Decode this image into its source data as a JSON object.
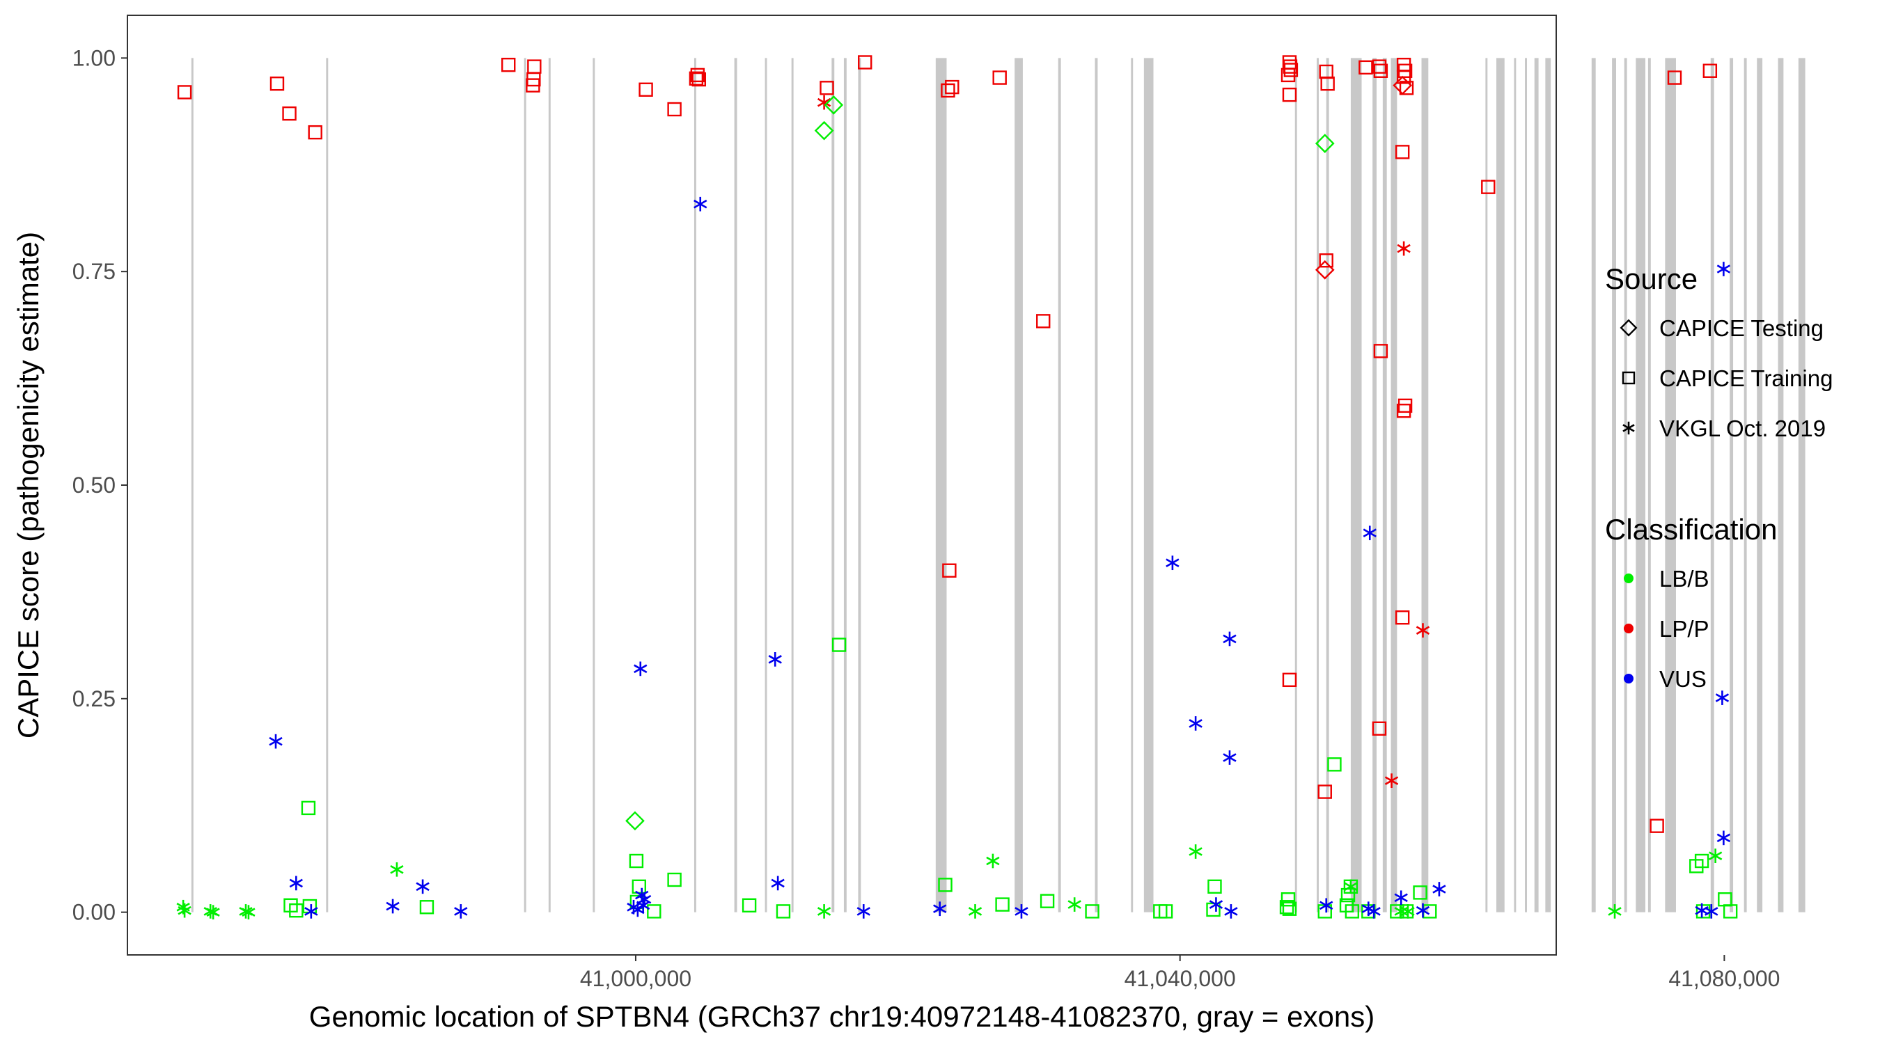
{
  "chart_data": {
    "type": "scatter",
    "xlabel": "Genomic location of SPTBN4 (GRCh37 chr19:40972148-41082370, gray = exons)",
    "ylabel": "CAPICE score (pathogenicity estimate)",
    "xlim": [
      -9500,
      95500
    ],
    "ylim": [
      -0.05,
      1.05
    ],
    "x_ticks": [
      {
        "value": 27852,
        "label": "41,000,000"
      },
      {
        "value": 67852,
        "label": "41,040,000"
      },
      {
        "value": 107852,
        "label": "41,080,000"
      }
    ],
    "y_ticks": [
      {
        "value": 0,
        "label": "0.00"
      },
      {
        "value": 0.25,
        "label": "0.25"
      },
      {
        "value": 0.5,
        "label": "0.50"
      },
      {
        "value": 0.75,
        "label": "0.75"
      },
      {
        "value": 1,
        "label": "1.00"
      }
    ],
    "grid": false,
    "exons": [
      [
        -4800,
        -4650
      ],
      [
        5100,
        5250
      ],
      [
        19650,
        19800
      ],
      [
        21450,
        21600
      ],
      [
        24700,
        24850
      ],
      [
        32150,
        32300
      ],
      [
        35100,
        35300
      ],
      [
        37350,
        37500
      ],
      [
        39300,
        39450
      ],
      [
        42250,
        42450
      ],
      [
        43150,
        43350
      ],
      [
        44200,
        44400
      ],
      [
        49900,
        50700
      ],
      [
        55700,
        56300
      ],
      [
        58900,
        59100
      ],
      [
        61600,
        61800
      ],
      [
        64250,
        64400
      ],
      [
        65200,
        65900
      ],
      [
        76300,
        76450
      ],
      [
        77900,
        78050
      ],
      [
        78600,
        78800
      ],
      [
        80400,
        81200
      ],
      [
        82000,
        82300
      ],
      [
        82750,
        83050
      ],
      [
        83350,
        83800
      ],
      [
        85600,
        86100
      ],
      [
        90300,
        90450
      ],
      [
        91100,
        91700
      ],
      [
        92400,
        92550
      ],
      [
        93200,
        93350
      ],
      [
        93900,
        94200
      ],
      [
        94700,
        95100
      ],
      [
        98100,
        98400
      ],
      [
        99600,
        99900
      ],
      [
        100500,
        100700
      ],
      [
        101350,
        102050
      ],
      [
        102250,
        102450
      ],
      [
        103500,
        104300
      ],
      [
        106850,
        107100
      ],
      [
        108250,
        108500
      ],
      [
        109300,
        109500
      ],
      [
        110250,
        110650
      ],
      [
        111800,
        112200
      ],
      [
        113300,
        113800
      ],
      [
        119350,
        120200
      ]
    ],
    "legend": {
      "placement": "right",
      "source_title": "Source",
      "source_items": [
        {
          "label": "CAPICE Testing",
          "shape": "diamond"
        },
        {
          "label": "CAPICE Training",
          "shape": "square"
        },
        {
          "label": "VKGL Oct. 2019",
          "shape": "asterisk"
        }
      ],
      "class_title": "Classification",
      "class_items": [
        {
          "label": "LB/B",
          "color": "#00ee00"
        },
        {
          "label": "LP/P",
          "color": "#ee0000"
        },
        {
          "label": "VUS",
          "color": "#0000ee"
        }
      ]
    },
    "series": [
      {
        "source": "CAPICE Training",
        "classification": "LP/P",
        "points": [
          [
            -5300,
            0.96
          ],
          [
            1500,
            0.97
          ],
          [
            2400,
            0.935
          ],
          [
            4300,
            0.913
          ],
          [
            18500,
            0.992
          ],
          [
            20400,
            0.99
          ],
          [
            20350,
            0.975
          ],
          [
            20300,
            0.968
          ],
          [
            28600,
            0.963
          ],
          [
            30700,
            0.94
          ],
          [
            32300,
            0.976
          ],
          [
            32400,
            0.98
          ],
          [
            32500,
            0.975
          ],
          [
            41900,
            0.965
          ],
          [
            44700,
            0.995
          ],
          [
            50800,
            0.962
          ],
          [
            51100,
            0.966
          ],
          [
            54600,
            0.977
          ],
          [
            57800,
            0.692
          ],
          [
            50900,
            0.4
          ],
          [
            75900,
            0.995
          ],
          [
            75950,
            0.99
          ],
          [
            76000,
            0.986
          ],
          [
            75800,
            0.98
          ],
          [
            75900,
            0.957
          ],
          [
            78600,
            0.984
          ],
          [
            78700,
            0.97
          ],
          [
            78600,
            0.763
          ],
          [
            78500,
            0.141
          ],
          [
            75900,
            0.272
          ],
          [
            81500,
            0.989
          ],
          [
            82500,
            0.99
          ],
          [
            82600,
            0.985
          ],
          [
            84300,
            0.992
          ],
          [
            84400,
            0.985
          ],
          [
            84300,
            0.978
          ],
          [
            84500,
            0.965
          ],
          [
            84200,
            0.89
          ],
          [
            82600,
            0.657
          ],
          [
            84400,
            0.593
          ],
          [
            84300,
            0.587
          ],
          [
            84200,
            0.345
          ],
          [
            82500,
            0.215
          ],
          [
            90500,
            0.849
          ],
          [
            104200,
            0.977
          ],
          [
            106800,
            0.985
          ],
          [
            102900,
            0.101
          ]
        ]
      },
      {
        "source": "CAPICE Testing",
        "classification": "LP/P",
        "points": [
          [
            84200,
            0.968
          ],
          [
            78500,
            0.752
          ]
        ]
      },
      {
        "source": "VKGL Oct. 2019",
        "classification": "LP/P",
        "points": [
          [
            41700,
            0.948
          ],
          [
            84300,
            0.777
          ],
          [
            85700,
            0.33
          ],
          [
            83400,
            0.154
          ]
        ]
      },
      {
        "source": "CAPICE Testing",
        "classification": "LB/B",
        "points": [
          [
            42400,
            0.945
          ],
          [
            41700,
            0.915
          ],
          [
            78500,
            0.9
          ],
          [
            27800,
            0.107
          ]
        ]
      },
      {
        "source": "CAPICE Training",
        "classification": "LB/B",
        "points": [
          [
            3800,
            0.122
          ],
          [
            2500,
            0.008
          ],
          [
            3900,
            0.007
          ],
          [
            2900,
            0.002
          ],
          [
            12500,
            0.006
          ],
          [
            27900,
            0.06
          ],
          [
            28100,
            0.03
          ],
          [
            27950,
            0.012
          ],
          [
            29200,
            0.001
          ],
          [
            30700,
            0.038
          ],
          [
            36200,
            0.008
          ],
          [
            38700,
            0.001
          ],
          [
            42800,
            0.313
          ],
          [
            50600,
            0.032
          ],
          [
            54800,
            0.009
          ],
          [
            58100,
            0.013
          ],
          [
            61400,
            0.001
          ],
          [
            66400,
            0.001
          ],
          [
            66800,
            0.001
          ],
          [
            70400,
            0.03
          ],
          [
            70300,
            0.003
          ],
          [
            75800,
            0.015
          ],
          [
            75700,
            0.006
          ],
          [
            75900,
            0.004
          ],
          [
            79200,
            0.173
          ],
          [
            80400,
            0.03
          ],
          [
            80200,
            0.02
          ],
          [
            80100,
            0.008
          ],
          [
            80500,
            0.001
          ],
          [
            78500,
            0.001
          ],
          [
            81700,
            0.001
          ],
          [
            83800,
            0.001
          ],
          [
            84500,
            0.001
          ],
          [
            85500,
            0.023
          ],
          [
            86200,
            0.001
          ],
          [
            105800,
            0.054
          ],
          [
            106200,
            0.06
          ],
          [
            107900,
            0.015
          ],
          [
            106300,
            0.001
          ],
          [
            108300,
            0.001
          ]
        ]
      },
      {
        "source": "VKGL Oct. 2019",
        "classification": "LB/B",
        "points": [
          [
            -5400,
            0.006
          ],
          [
            -5300,
            0.002
          ],
          [
            -3400,
            0.001
          ],
          [
            -3200,
            0.0
          ],
          [
            -800,
            0.001
          ],
          [
            -600,
            0.0
          ],
          [
            10300,
            0.05
          ],
          [
            41700,
            0.001
          ],
          [
            52800,
            0.001
          ],
          [
            54100,
            0.06
          ],
          [
            60100,
            0.009
          ],
          [
            69000,
            0.071
          ],
          [
            80400,
            0.03
          ],
          [
            84100,
            0.001
          ],
          [
            84600,
            0.001
          ],
          [
            99800,
            0.001
          ],
          [
            107200,
            0.066
          ]
        ]
      },
      {
        "source": "VKGL Oct. 2019",
        "classification": "VUS",
        "points": [
          [
            1400,
            0.2
          ],
          [
            2900,
            0.034
          ],
          [
            4000,
            0.001
          ],
          [
            10000,
            0.007
          ],
          [
            12200,
            0.03
          ],
          [
            15000,
            0.001
          ],
          [
            27700,
            0.006
          ],
          [
            28200,
            0.285
          ],
          [
            28300,
            0.02
          ],
          [
            28500,
            0.015
          ],
          [
            28400,
            0.008
          ],
          [
            28000,
            0.003
          ],
          [
            32600,
            0.829
          ],
          [
            38100,
            0.296
          ],
          [
            38300,
            0.034
          ],
          [
            44600,
            0.001
          ],
          [
            50200,
            0.004
          ],
          [
            56200,
            0.001
          ],
          [
            67300,
            0.409
          ],
          [
            69000,
            0.221
          ],
          [
            71500,
            0.32
          ],
          [
            71500,
            0.181
          ],
          [
            70500,
            0.009
          ],
          [
            71600,
            0.001
          ],
          [
            78600,
            0.008
          ],
          [
            81800,
            0.444
          ],
          [
            81700,
            0.004
          ],
          [
            82100,
            0.001
          ],
          [
            84100,
            0.017
          ],
          [
            85700,
            0.002
          ],
          [
            86900,
            0.027
          ],
          [
            107800,
            0.753
          ],
          [
            107700,
            0.251
          ],
          [
            107800,
            0.087
          ],
          [
            106200,
            0.002
          ],
          [
            106900,
            0.001
          ]
        ]
      }
    ]
  }
}
